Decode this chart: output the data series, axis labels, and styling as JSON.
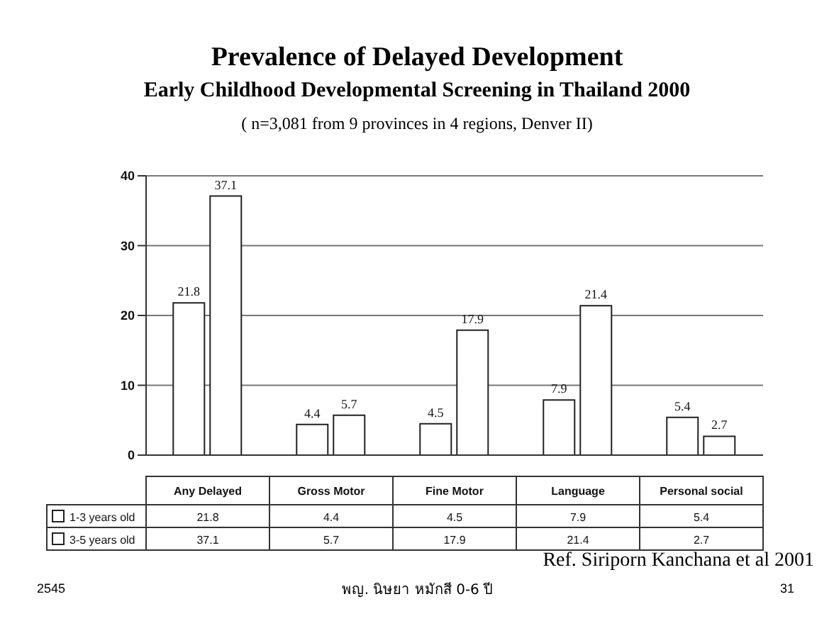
{
  "chart_data": {
    "type": "bar",
    "title": "Prevalence of Delayed Development",
    "subtitle": "Early Childhood Developmental Screening in Thailand  2000\n( n=3,081 from 9 provinces in 4 regions,  Denver II)",
    "categories": [
      "Any Delayed",
      "Gross Motor",
      "Fine Motor",
      "Language",
      "Personal social"
    ],
    "series": [
      {
        "name": "1-3 years old",
        "color": "#ffffff",
        "values": [
          21.8,
          4.4,
          4.5,
          7.9,
          5.4
        ]
      },
      {
        "name": "3-5 years old",
        "color": "#ffffff",
        "values": [
          37.1,
          5.7,
          17.9,
          21.4,
          2.7
        ]
      }
    ],
    "ylim": [
      0,
      40
    ],
    "yticks": [
      0,
      10,
      20,
      30,
      40
    ],
    "grid": "y",
    "data_labels": true,
    "legend": "bottom",
    "annotations": [
      "Ref. Siriporn Kanchana et al 2001",
      "2545",
      "พญ. นิษยา หมักสี 0-6 ปี",
      "31",
      "21.8",
      "4.4",
      "4.5",
      "7.9",
      "5.4",
      "37.1",
      "5.7",
      "17.9",
      "21.4",
      "2.7"
    ]
  }
}
